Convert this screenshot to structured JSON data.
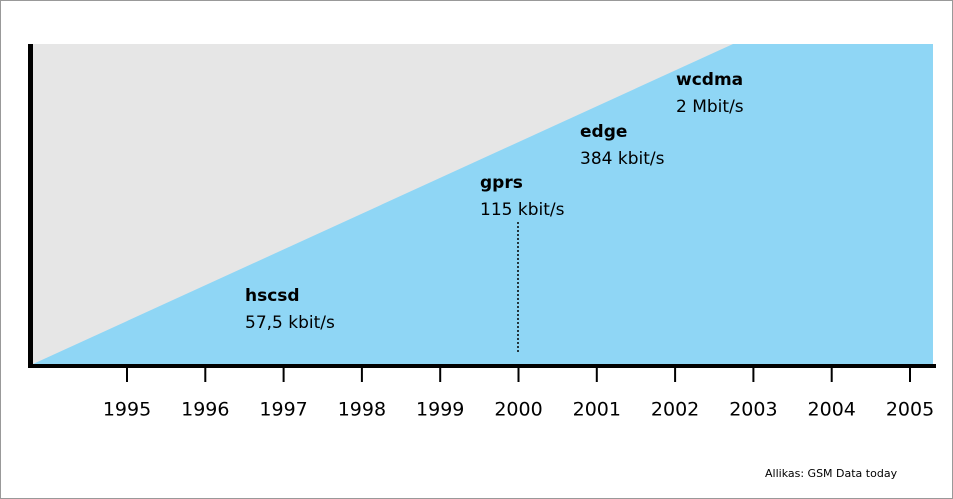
{
  "years": [
    "1995",
    "1996",
    "1997",
    "1998",
    "1999",
    "2000",
    "2001",
    "2002",
    "2003",
    "2004",
    "2005"
  ],
  "technologies": [
    {
      "name": "hscsd",
      "speed": "57,5 kbit/s"
    },
    {
      "name": "gprs",
      "speed": "115 kbit/s"
    },
    {
      "name": "edge",
      "speed": "384 kbit/s"
    },
    {
      "name": "wcdma",
      "speed": "2 Mbit/s"
    }
  ],
  "source": "Allikas: GSM Data today"
}
